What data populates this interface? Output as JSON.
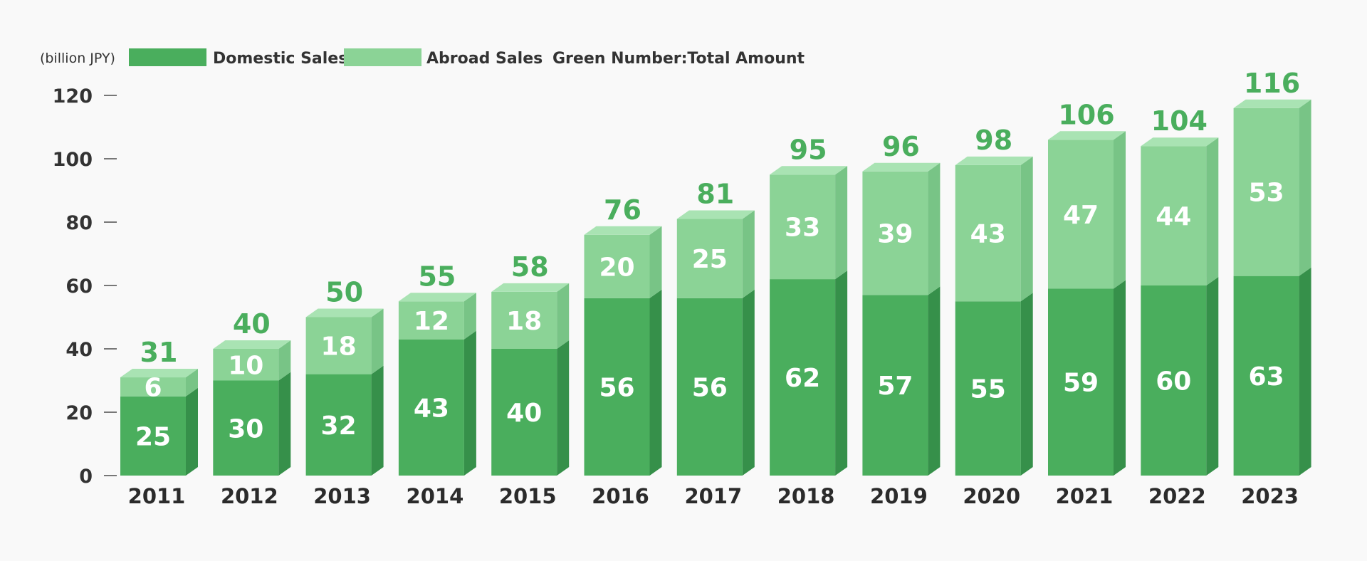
{
  "chart_data": {
    "type": "bar",
    "stacked": true,
    "unit_label": "(billion JPY)",
    "note": "Green Number:Total Amount",
    "categories": [
      "2011",
      "2012",
      "2013",
      "2014",
      "2015",
      "2016",
      "2017",
      "2018",
      "2019",
      "2020",
      "2021",
      "2022",
      "2023"
    ],
    "series": [
      {
        "name": "Domestic Sales",
        "color": "#4aae5d",
        "values": [
          25,
          30,
          32,
          43,
          40,
          56,
          56,
          62,
          57,
          55,
          59,
          60,
          63
        ]
      },
      {
        "name": "Abroad Sales",
        "color": "#8bd396",
        "values": [
          6,
          10,
          18,
          12,
          18,
          20,
          25,
          33,
          39,
          43,
          47,
          44,
          53
        ]
      }
    ],
    "totals": [
      31,
      40,
      50,
      55,
      58,
      76,
      81,
      95,
      96,
      98,
      106,
      104,
      116
    ],
    "ylim": [
      0,
      120
    ],
    "yticks": [
      0,
      20,
      40,
      60,
      80,
      100,
      120
    ],
    "grid": false,
    "legend_position": "top-left",
    "colors": {
      "total_text": "#4aae5d",
      "domestic_side": "#36904a",
      "domestic_top": "#5fbf70",
      "abroad_side": "#78c486",
      "abroad_top": "#a9e3b3",
      "axis_text": "#333333"
    }
  }
}
